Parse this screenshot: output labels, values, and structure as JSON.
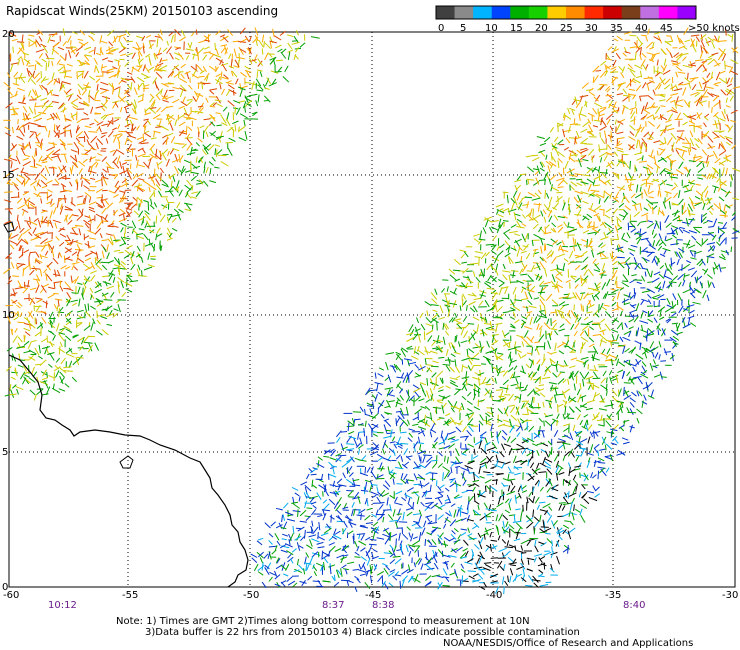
{
  "title": "Rapidscat Winds(25KM) 20150103 ascending",
  "legend": {
    "labels": [
      "0",
      "5",
      "10",
      "15",
      "20",
      "25",
      "30",
      "35",
      "40",
      "45",
      ">50 knots"
    ],
    "colors": [
      "#404040",
      "#8a8a8a",
      "#00b4ff",
      "#0044ff",
      "#00b000",
      "#16d000",
      "#ffcc00",
      "#ff8c00",
      "#ff2a00",
      "#cc0000",
      "#7a3e1a",
      "#c070e0",
      "#ff00ff",
      "#9900ff"
    ]
  },
  "axes": {
    "lon_labels": [
      "-60",
      "-55",
      "-50",
      "-45",
      "-40",
      "-35",
      "-30"
    ],
    "lat_labels": [
      "0",
      "5",
      "10",
      "15",
      "20"
    ]
  },
  "times": [
    "10:12",
    "8:37",
    "8:38",
    "8:40"
  ],
  "notes": {
    "line1": "Note: 1) Times are GMT 2)Times along bottom correspond to measurement at 10N",
    "line2": "3)Data buffer is 22 hrs from 20150103 4) Black circles indicate possible contamination",
    "credit": "NOAA/NESDIS/Office of Research and Applications"
  },
  "wind_colors": {
    "low": "#0033cc",
    "mid_low": "#00aaee",
    "mid": "#00a000",
    "mid_high": "#cccc00",
    "high": "#ffaa00",
    "very_high": "#dd4400",
    "contamination": "#000000"
  }
}
